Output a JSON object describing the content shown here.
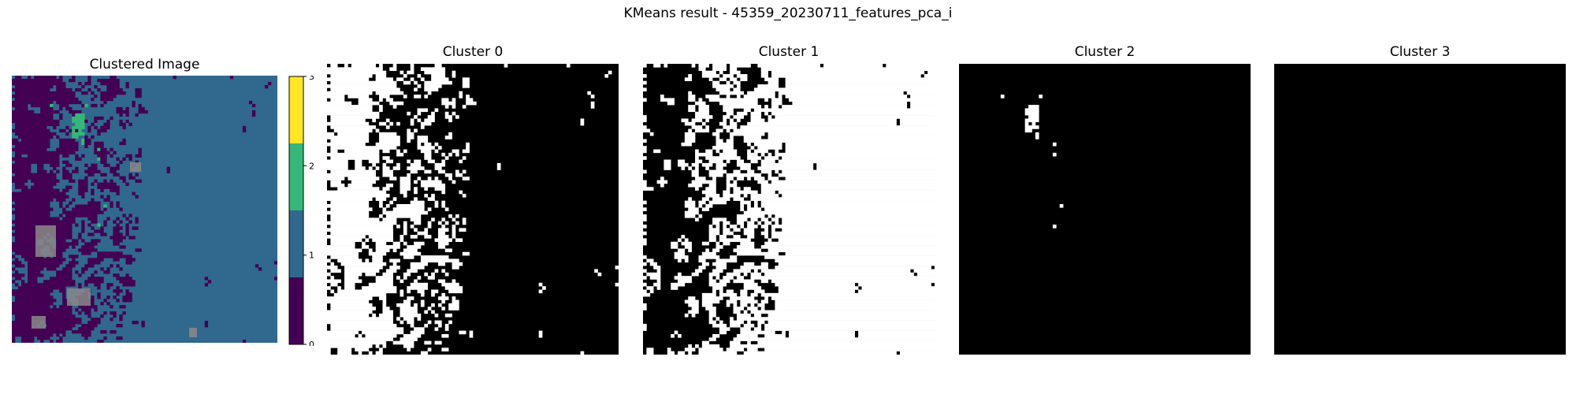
{
  "suptitle": "KMeans result - 45359_20230711_features_pca_i",
  "colors": {
    "cluster_0": "#440154",
    "cluster_1": "#31688e",
    "cluster_2": "#35b779",
    "cluster_3": "#fde725",
    "gray_patch": "#8a8a8a",
    "mask_on": "#ffffff",
    "mask_off": "#000000"
  },
  "chart_data": [
    {
      "type": "heatmap",
      "title": "Clustered Image",
      "colorbar": {
        "ticks": [
          "0",
          "1",
          "2",
          "3"
        ],
        "colormap": "viridis",
        "range": [
          0,
          3
        ]
      },
      "notes_visible": ""
    },
    {
      "type": "heatmap",
      "title": "Cluster 0",
      "colormap": "binary-mask"
    },
    {
      "type": "heatmap",
      "title": "Cluster 1",
      "colormap": "binary-mask"
    },
    {
      "type": "heatmap",
      "title": "Cluster 2",
      "colormap": "binary-mask"
    },
    {
      "type": "heatmap",
      "title": "Cluster 3",
      "colormap": "binary-mask"
    }
  ]
}
